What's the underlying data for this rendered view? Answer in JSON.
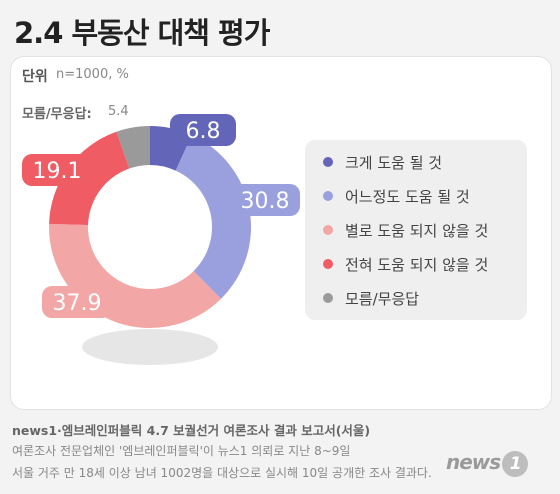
{
  "title": "2.4 부동산 대책 평가",
  "unit": {
    "label": "단위",
    "value": "n=1000, %"
  },
  "no_answer": {
    "label": "모름/무응답:",
    "value": "5.4"
  },
  "chart_data": {
    "type": "pie",
    "variant": "donut",
    "unit": "%",
    "categories": [
      "크게 도움 될 것",
      "어느정도 도움 될 것",
      "별로 도움 되지 않을 것",
      "전혀 도움 되지 않을 것",
      "모름/무응답"
    ],
    "values": [
      6.8,
      30.8,
      37.9,
      19.1,
      5.4
    ],
    "colors": [
      "#6366b8",
      "#9aa0dd",
      "#f2a7a6",
      "#ef5c64",
      "#9a9a9a"
    ],
    "value_labels": [
      "6.8",
      "30.8",
      "37.9",
      "19.1",
      ""
    ],
    "legend_position": "right"
  },
  "legend": [
    {
      "label": "크게 도움 될 것",
      "color": "#6366b8"
    },
    {
      "label": "어느정도 도움 될 것",
      "color": "#9aa0dd"
    },
    {
      "label": "별로 도움 되지 않을 것",
      "color": "#f2a7a6"
    },
    {
      "label": "전혀 도움 되지 않을 것",
      "color": "#ef5c64"
    },
    {
      "label": "모름/무응답",
      "color": "#9a9a9a"
    }
  ],
  "footer": {
    "source": "news1·엠브레인퍼블릭 4.7 보궐선거 여론조사 결과 보고서(서울)",
    "line2": "여론조사 전문업체인 '엠브레인퍼블릭'이 뉴스1 의뢰로 지난 8~9일",
    "line3": "서울 거주 만 18세 이상 남녀 1002명을 대상으로 실시해 10일 공개한 조사 결과다."
  },
  "logo": {
    "text": "news",
    "badge": "1"
  }
}
